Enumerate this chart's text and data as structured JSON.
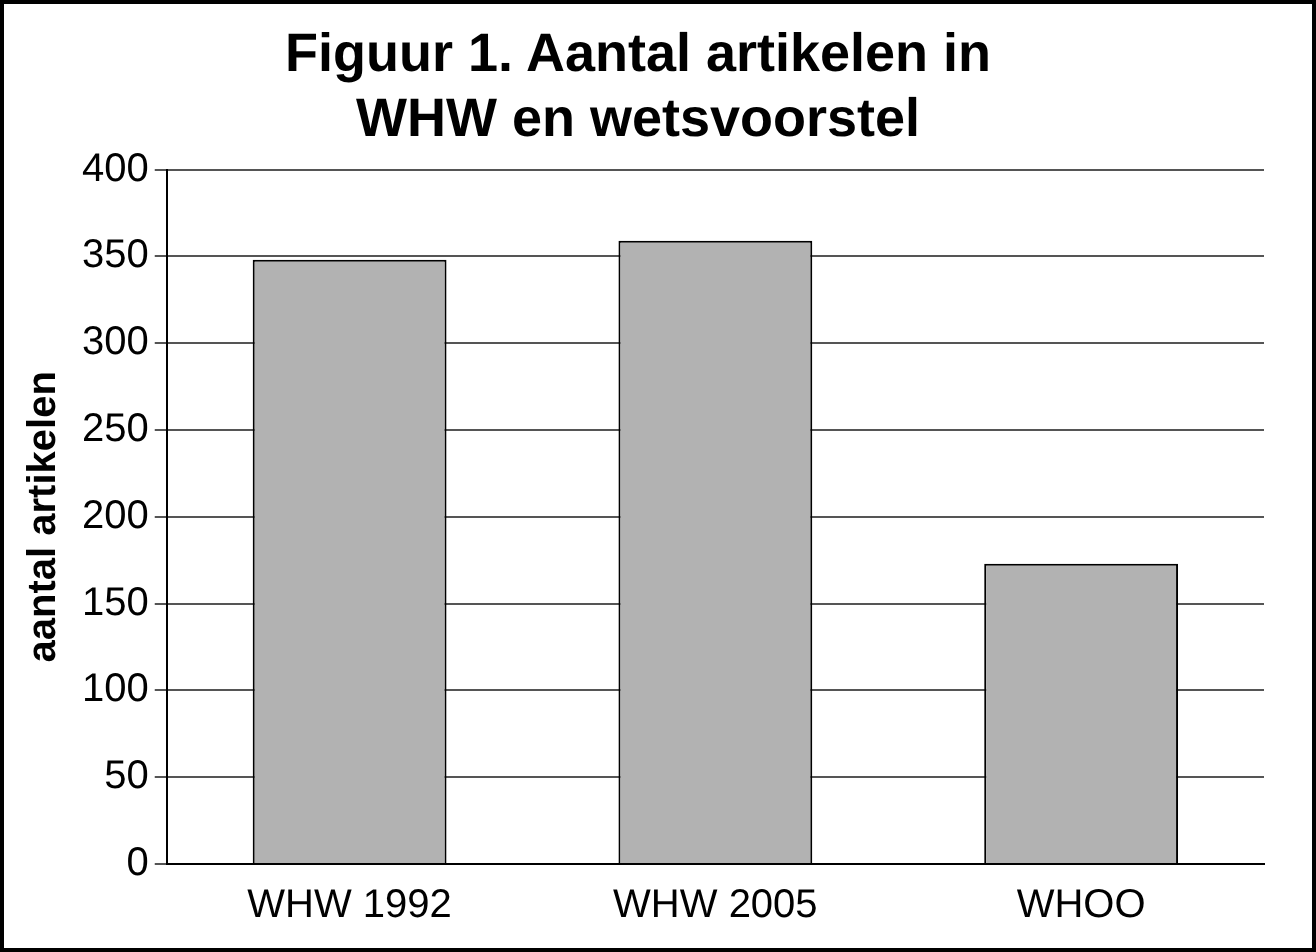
{
  "chart_data": {
    "type": "bar",
    "title": [
      "Figuur 1. Aantal artikelen in",
      "WHW en wetsvoorstel"
    ],
    "ylabel": "aantal artikelen",
    "categories": [
      "WHW 1992",
      "WHW 2005",
      "WHOO"
    ],
    "values": [
      348,
      359,
      173
    ],
    "color": "#b2b2b2",
    "ylim": [
      0,
      400
    ],
    "yticks": [
      0,
      50,
      100,
      150,
      200,
      250,
      300,
      350,
      400
    ],
    "grid": "y",
    "legend": false
  }
}
